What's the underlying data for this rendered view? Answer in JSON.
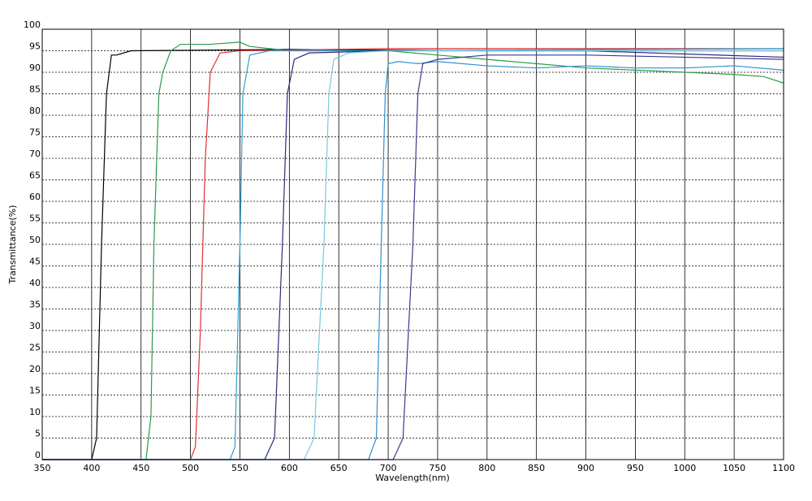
{
  "chart_data": {
    "type": "line",
    "xlabel": "Wavelength(nm)",
    "ylabel": "Transmittance(%)",
    "xlim": [
      350,
      1100
    ],
    "xticks": [
      350,
      400,
      450,
      500,
      550,
      600,
      650,
      700,
      750,
      800,
      850,
      900,
      950,
      1000,
      1050,
      1100
    ],
    "ylim": [
      0,
      100
    ],
    "yticks": [
      0,
      5,
      10,
      15,
      20,
      25,
      30,
      35,
      40,
      45,
      50,
      55,
      60,
      65,
      70,
      75,
      80,
      85,
      90,
      95,
      100
    ],
    "grid": true,
    "series": [
      {
        "color": "#000000",
        "x": [
          350,
          400,
          405,
          410,
          415,
          420,
          425,
          440,
          600,
          800,
          1100
        ],
        "values": [
          0,
          0,
          5,
          50,
          85,
          94,
          94,
          95,
          95.3,
          95,
          95
        ]
      },
      {
        "color": "#2e9a4a",
        "x": [
          350,
          455,
          460,
          463,
          468,
          472,
          480,
          490,
          520,
          550,
          560,
          600,
          700,
          750,
          800,
          850,
          900,
          950,
          1000,
          1050,
          1080,
          1100
        ],
        "values": [
          0,
          0,
          10,
          50,
          85,
          90,
          95,
          96.5,
          96.5,
          97,
          96,
          95,
          95,
          94,
          93,
          92,
          91,
          90.5,
          90,
          89.5,
          89,
          87.5
        ]
      },
      {
        "color": "#e03030",
        "x": [
          350,
          500,
          505,
          510,
          515,
          520,
          530,
          550,
          700,
          900,
          1100
        ],
        "values": [
          0,
          0,
          3,
          30,
          70,
          90,
          94.5,
          95,
          95.5,
          95.5,
          95.5
        ]
      },
      {
        "color": "#2aa0d0",
        "x": [
          350,
          540,
          545,
          550,
          553,
          560,
          580,
          700,
          1100
        ],
        "values": [
          0,
          0,
          3,
          50,
          85,
          94,
          95,
          95,
          95.5
        ]
      },
      {
        "color": "#2a2a7a",
        "x": [
          350,
          575,
          585,
          593,
          598,
          605,
          620,
          700,
          900,
          1100
        ],
        "values": [
          0,
          0,
          5,
          50,
          85,
          93,
          94.5,
          95,
          95,
          93.5
        ]
      },
      {
        "color": "#7ac8e0",
        "x": [
          350,
          615,
          625,
          635,
          640,
          645,
          660,
          700,
          1100
        ],
        "values": [
          0,
          0,
          5,
          50,
          85,
          93,
          94.5,
          95,
          95
        ]
      },
      {
        "color": "#3090d0",
        "x": [
          350,
          680,
          688,
          693,
          697,
          700,
          710,
          730,
          750,
          800,
          850,
          900,
          950,
          1000,
          1050,
          1100
        ],
        "values": [
          0,
          0,
          5,
          50,
          85,
          92,
          92.5,
          92,
          92.5,
          91.5,
          91,
          91.5,
          91,
          91,
          91.5,
          90.5
        ]
      },
      {
        "color": "#3a3a90",
        "x": [
          350,
          705,
          715,
          725,
          730,
          735,
          750,
          800,
          900,
          1000,
          1100
        ],
        "values": [
          0,
          0,
          5,
          50,
          85,
          92,
          93,
          94,
          94,
          93.5,
          93
        ]
      }
    ]
  }
}
